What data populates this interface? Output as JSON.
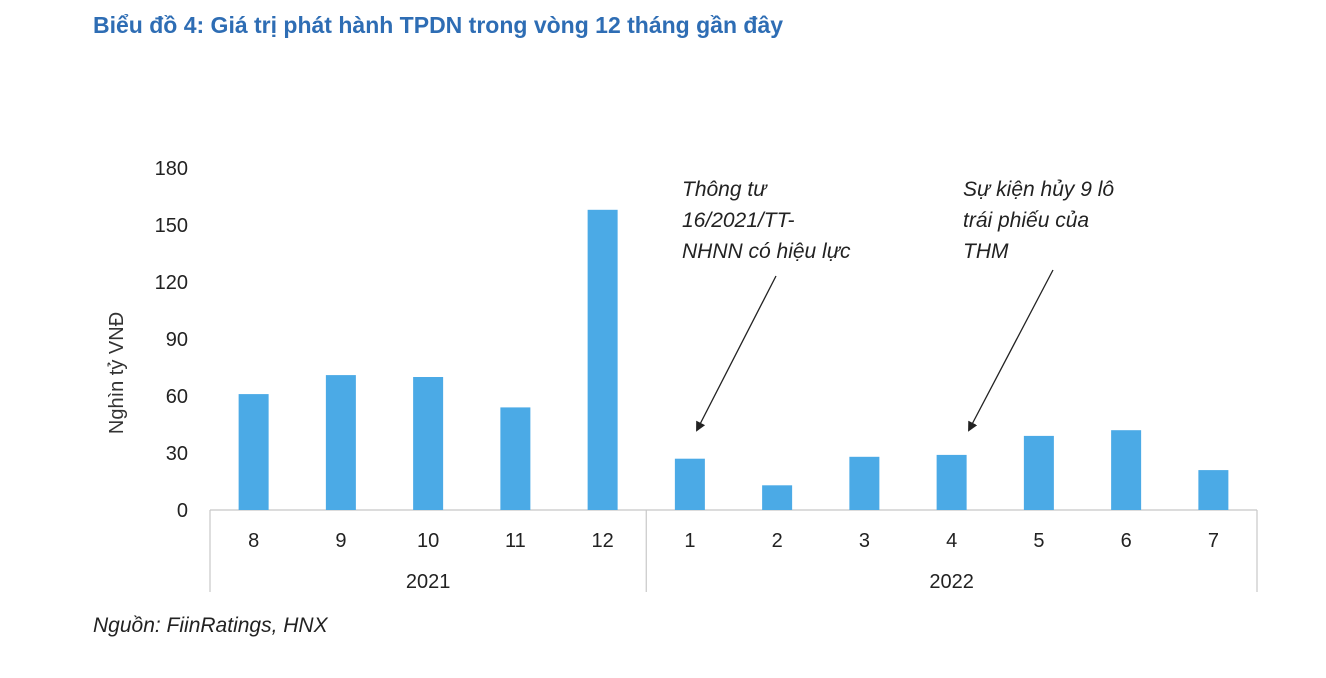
{
  "title": "Biểu đồ 4: Giá trị phát hành TPDN trong vòng 12 tháng gần đây",
  "source": "Nguồn: FiinRatings, HNX",
  "chart_data": {
    "type": "bar",
    "categories": [
      "8",
      "9",
      "10",
      "11",
      "12",
      "1",
      "2",
      "3",
      "4",
      "5",
      "6",
      "7"
    ],
    "groups": [
      {
        "label": "2021",
        "categories": [
          "8",
          "9",
          "10",
          "11",
          "12"
        ]
      },
      {
        "label": "2022",
        "categories": [
          "1",
          "2",
          "3",
          "4",
          "5",
          "6",
          "7"
        ]
      }
    ],
    "values": [
      61,
      71,
      70,
      54,
      158,
      27,
      13,
      28,
      29,
      39,
      42,
      21
    ],
    "ylabel": "Nghìn tỷ VNĐ",
    "ylim": [
      0,
      180
    ],
    "yticks": [
      0,
      30,
      60,
      90,
      120,
      150,
      180
    ],
    "bar_color": "#4baae6",
    "grid": false,
    "annotations": [
      {
        "lines": [
          "Thông tư",
          "16/2021/TT-",
          "NHNN có hiệu lực"
        ],
        "target_category": "1"
      },
      {
        "lines": [
          "Sự kiện hủy 9 lô",
          "trái phiếu của",
          "THM"
        ],
        "target_category": "4"
      }
    ]
  }
}
